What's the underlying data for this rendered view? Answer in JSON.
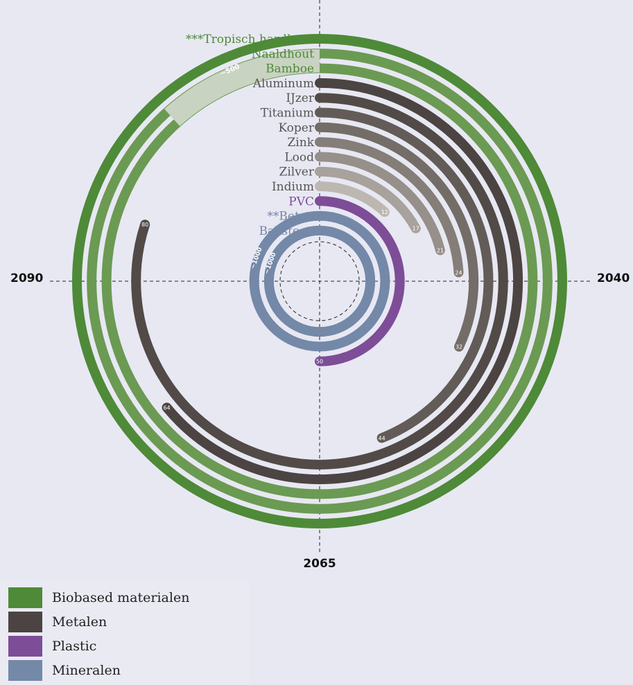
{
  "chart_data": {
    "type": "radial-bar",
    "timeline": {
      "top": "",
      "right": "2040",
      "bottom": "2065",
      "left": "2090"
    },
    "categories": [
      {
        "label": "***Tropisch hardhout",
        "group": "biobased",
        "years_left": 100,
        "end_label": "",
        "color": "#4e8a38"
      },
      {
        "label": "Naaldhout",
        "group": "biobased",
        "years_left": 500,
        "end_label": "~500",
        "color": "#6b9a53"
      },
      {
        "label": "Bamboe",
        "group": "biobased",
        "years_left": 500,
        "end_label": "",
        "color": "#6b9a53"
      },
      {
        "label": "Aluminum",
        "group": "metalen",
        "years_left": 64,
        "end_label": "64",
        "color": "#4c4442"
      },
      {
        "label": "IJzer",
        "group": "metalen",
        "years_left": 80,
        "end_label": "80",
        "color": "#524a47"
      },
      {
        "label": "Titanium",
        "group": "metalen",
        "years_left": 44,
        "end_label": "44",
        "color": "#635b57"
      },
      {
        "label": "Koper",
        "group": "metalen",
        "years_left": 32,
        "end_label": "32",
        "color": "#746c67"
      },
      {
        "label": "Zink",
        "group": "metalen",
        "years_left": 24,
        "end_label": "24",
        "color": "#857d78"
      },
      {
        "label": "Lood",
        "group": "metalen",
        "years_left": 21,
        "end_label": "21",
        "color": "#968f8a"
      },
      {
        "label": "Zilver",
        "group": "metalen",
        "years_left": 17,
        "end_label": "17",
        "color": "#a8a19c"
      },
      {
        "label": "Indium",
        "group": "metalen",
        "years_left": 12,
        "end_label": "12",
        "color": "#bdb7b1"
      },
      {
        "label": "PVC",
        "group": "plastic",
        "years_left": 50,
        "end_label": "50",
        "color": "#7d4d97"
      },
      {
        "label": "**Beton",
        "group": "mineralen",
        "years_left": 1000,
        "end_label": "~1000",
        "color": "#7488a8"
      },
      {
        "label": "Baksteen",
        "group": "mineralen",
        "years_left": 1000,
        "end_label": "~1000",
        "color": "#7488a8"
      }
    ],
    "legend": [
      {
        "label": "Biobased materialen",
        "color": "#4e8a38"
      },
      {
        "label": "Metalen",
        "color": "#4c4442"
      },
      {
        "label": "Plastic",
        "color": "#7d4d97"
      },
      {
        "label": "Mineralen",
        "color": "#7488a8"
      }
    ],
    "label_colors": {
      "biobased": "#4e8a38",
      "metalen": "#555555",
      "plastic": "#7d4d97",
      "mineralen": "#7488a8"
    }
  }
}
